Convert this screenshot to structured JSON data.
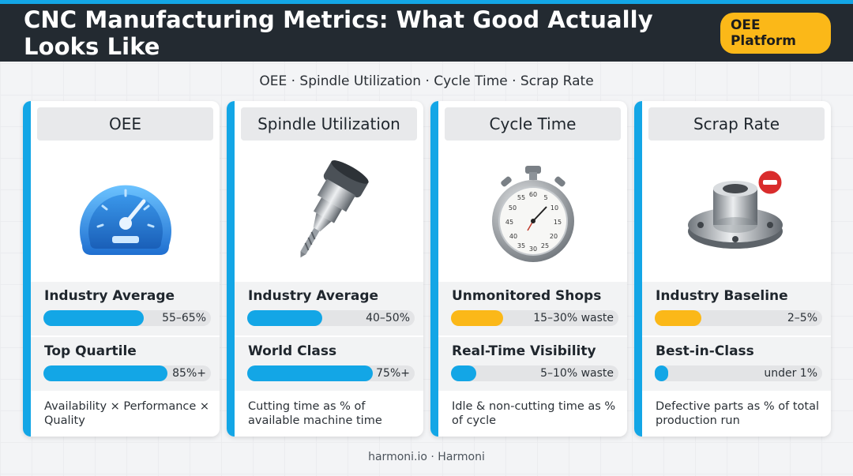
{
  "header": {
    "title": "CNC Manufacturing Metrics: What Good Actually Looks Like",
    "badge": "OEE Platform"
  },
  "subtitle": "OEE · Spindle Utilization · Cycle Time · Scrap Rate",
  "colors": {
    "accent": "#13a6e6",
    "header_bg": "#232a31",
    "badge": "#fbb818",
    "bar_blue": "#13a6e6",
    "bar_yellow": "#fbb818"
  },
  "cards": [
    {
      "title": "OEE",
      "icon": "speedometer-gauge-icon",
      "metrics": [
        {
          "label": "Industry Average",
          "value": "55–65%",
          "fill": 0.6,
          "color": "blue"
        },
        {
          "label": "Top Quartile",
          "value": "85%+",
          "fill": 0.74,
          "color": "blue"
        }
      ],
      "description": "Availability × Performance × Quality"
    },
    {
      "title": "Spindle Utilization",
      "icon": "cnc-spindle-drill-icon",
      "metrics": [
        {
          "label": "Industry Average",
          "value": "40–50%",
          "fill": 0.45,
          "color": "blue"
        },
        {
          "label": "World Class",
          "value": "75%+",
          "fill": 0.75,
          "color": "blue"
        }
      ],
      "description": "Cutting time as % of available machine time"
    },
    {
      "title": "Cycle Time",
      "icon": "stopwatch-icon",
      "metrics": [
        {
          "label": "Unmonitored Shops",
          "value": "15–30% waste",
          "fill": 0.31,
          "color": "yellow"
        },
        {
          "label": "Real-Time Visibility",
          "value": "5–10% waste",
          "fill": 0.15,
          "color": "blue"
        }
      ],
      "description": "Idle & non-cutting time as % of cycle"
    },
    {
      "title": "Scrap Rate",
      "icon": "machined-flange-part-icon",
      "metrics": [
        {
          "label": "Industry Baseline",
          "value": "2–5%",
          "fill": 0.28,
          "color": "yellow"
        },
        {
          "label": "Best-in-Class",
          "value": "under 1%",
          "fill": 0.08,
          "color": "blue"
        }
      ],
      "description": "Defective parts as % of total production run"
    }
  ],
  "footer": "harmoni.io · Harmoni"
}
